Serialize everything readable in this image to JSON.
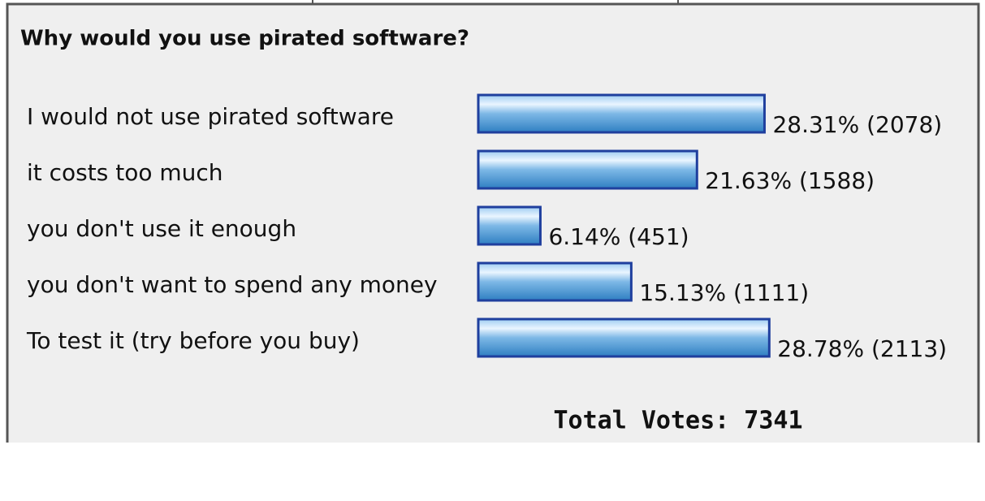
{
  "chart_data": {
    "type": "bar",
    "orientation": "horizontal",
    "title": "Why would you use pirated software?",
    "categories": [
      "I would not use pirated software",
      "it costs too much",
      "you don't use it enough",
      "you don't want to spend any money",
      "To test it (try before you buy)"
    ],
    "values": [
      28.31,
      21.63,
      6.14,
      15.13,
      28.78
    ],
    "value_labels": [
      "28.31% (2078)",
      "21.63% (1588)",
      "6.14% (451)",
      "15.13% (1111)",
      "28.78% (2113)"
    ],
    "color": "#3a86c8",
    "annotation": "Total Votes: 7341"
  }
}
